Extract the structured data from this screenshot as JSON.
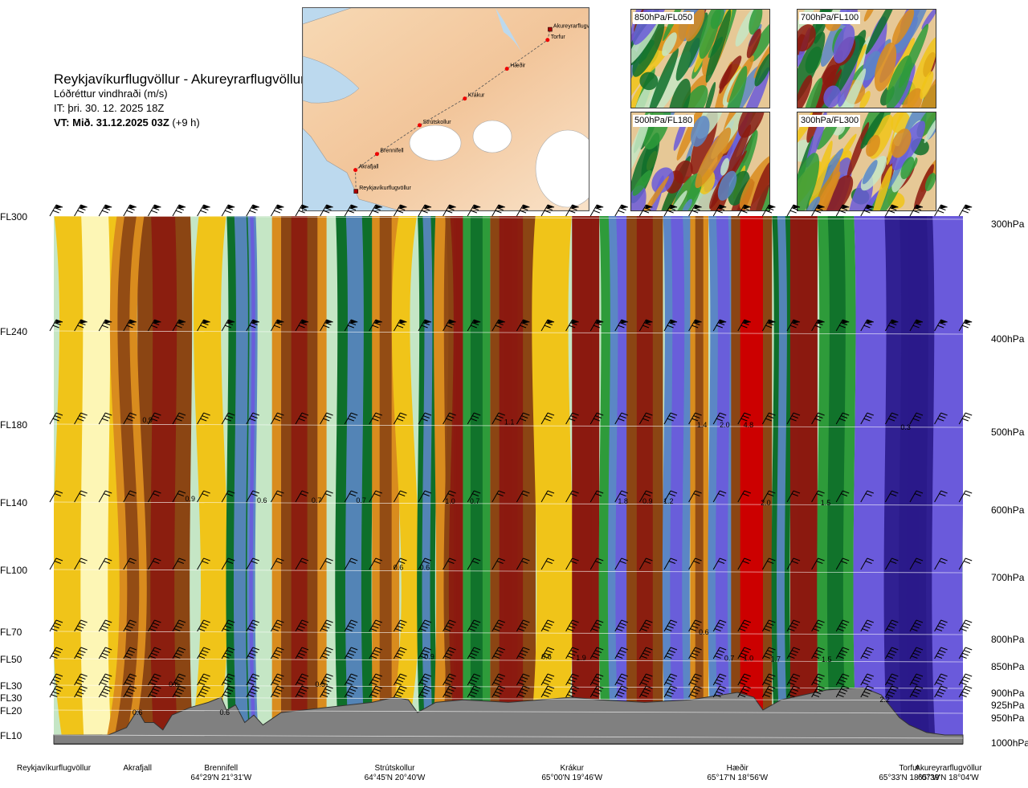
{
  "header": {
    "route": "Reykjavíkurflugvöllur - Akureyrarflugvöllur",
    "parameter": "Lóðréttur vindhraði (m/s)",
    "issue_time": "IT: þri. 30. 12. 2025 18Z",
    "valid_time_bold": "VT: Mið. 31.12.2025 03Z",
    "valid_offset": "(+9 h)"
  },
  "route_map": {
    "points": [
      {
        "name": "Reykjavíkurflugvöllur",
        "lon": -21.94,
        "lat": 64.13
      },
      {
        "name": "Akrafjall",
        "lon": -21.95,
        "lat": 64.33
      },
      {
        "name": "Brennifell",
        "lon": -21.52,
        "lat": 64.48
      },
      {
        "name": "Strútskollur",
        "lon": -20.67,
        "lat": 64.75
      },
      {
        "name": "Krákur",
        "lon": -19.77,
        "lat": 65.0
      },
      {
        "name": "Hæðir",
        "lon": -18.93,
        "lat": 65.28
      },
      {
        "name": "Torfur",
        "lon": -18.12,
        "lat": 65.55
      },
      {
        "name": "Akureyrarflugvöllur",
        "lon": -18.07,
        "lat": 65.65
      }
    ]
  },
  "insets": [
    {
      "label": "850hPa/FL050"
    },
    {
      "label": "700hPa/FL100"
    },
    {
      "label": "500hPa/FL180"
    },
    {
      "label": "300hPa/FL300"
    }
  ],
  "chart_data": {
    "type": "heatmap",
    "title": "Lóðréttur vindhraði (m/s)",
    "flight_levels": [
      {
        "label": "FL300",
        "hpa": 300
      },
      {
        "label": "FL240",
        "hpa": 400
      },
      {
        "label": "FL180",
        "hpa": 500
      },
      {
        "label": "FL140",
        "hpa": 600
      },
      {
        "label": "FL100",
        "hpa": 700
      },
      {
        "label": "FL70",
        "hpa": 800
      },
      {
        "label": "FL50",
        "hpa": 850
      },
      {
        "label": "FL30",
        "hpa": 900
      },
      {
        "label": "FL30",
        "hpa": 925
      },
      {
        "label": "FL20",
        "hpa": 950
      },
      {
        "label": "FL10",
        "hpa": 1000
      }
    ],
    "pressure_labels": [
      "300hPa",
      "400hPa",
      "500hPa",
      "600hPa",
      "700hPa",
      "800hPa",
      "850hPa",
      "900hPa",
      "925hPa",
      "950hPa",
      "1000hPa"
    ],
    "pressure_levels": [
      300,
      400,
      500,
      600,
      700,
      800,
      850,
      900,
      925,
      950,
      1000
    ],
    "distance_range": [
      0,
      100
    ],
    "waypoints": [
      {
        "name": "Reykjavíkurflugvöllur",
        "coord": "",
        "dist": 0
      },
      {
        "name": "Akrafjall",
        "coord": "",
        "dist": 9.2
      },
      {
        "name": "Brennifell",
        "coord": "64°29'N 21°31'W",
        "dist": 18.4
      },
      {
        "name": "Strútskollur",
        "coord": "64°45'N 20°40'W",
        "dist": 37.5
      },
      {
        "name": "Krákur",
        "coord": "65°00'N 19°46'W",
        "dist": 57
      },
      {
        "name": "Hæðir",
        "coord": "65°17'N 18°56'W",
        "dist": 75.2
      },
      {
        "name": "Torfur",
        "coord": "65°33'N 18°07'W",
        "dist": 94.1
      },
      {
        "name": "Akureyrarflugvöllur",
        "coord": "65°39'N 18°04'W",
        "dist": 98.4
      }
    ],
    "value_labels": [
      {
        "text": "0.9",
        "dist": 10.3,
        "hpa": 495
      },
      {
        "text": "1.1",
        "dist": 50.1,
        "hpa": 497
      },
      {
        "text": "1.4",
        "dist": 71.3,
        "hpa": 500
      },
      {
        "text": "2.0",
        "dist": 73.8,
        "hpa": 500
      },
      {
        "text": "4.8",
        "dist": 76.4,
        "hpa": 500
      },
      {
        "text": "0.3",
        "dist": 93.7,
        "hpa": 503
      },
      {
        "text": "0.9",
        "dist": 15.0,
        "hpa": 595
      },
      {
        "text": "0.6",
        "dist": 22.9,
        "hpa": 597
      },
      {
        "text": "0.7",
        "dist": 28.9,
        "hpa": 597
      },
      {
        "text": "0.7",
        "dist": 33.8,
        "hpa": 597
      },
      {
        "text": "1.0",
        "dist": 43.6,
        "hpa": 598
      },
      {
        "text": "0.7",
        "dist": 46.3,
        "hpa": 598
      },
      {
        "text": "1.8",
        "dist": 62.6,
        "hpa": 598
      },
      {
        "text": "0.9",
        "dist": 65.3,
        "hpa": 598
      },
      {
        "text": "1.2",
        "dist": 67.6,
        "hpa": 598
      },
      {
        "text": "2.0",
        "dist": 78.3,
        "hpa": 600
      },
      {
        "text": "1.5",
        "dist": 84.9,
        "hpa": 600
      },
      {
        "text": "0.6",
        "dist": 37.9,
        "hpa": 696
      },
      {
        "text": "0.6",
        "dist": 40.8,
        "hpa": 696
      },
      {
        "text": "0.6",
        "dist": 71.5,
        "hpa": 800
      },
      {
        "text": "0.9",
        "dist": 41.3,
        "hpa": 845
      },
      {
        "text": "0.6",
        "dist": 54.2,
        "hpa": 845
      },
      {
        "text": "1.9",
        "dist": 58.0,
        "hpa": 847
      },
      {
        "text": "0.7",
        "dist": 74.3,
        "hpa": 848
      },
      {
        "text": "1.0",
        "dist": 76.4,
        "hpa": 848
      },
      {
        "text": "1.7",
        "dist": 79.4,
        "hpa": 849
      },
      {
        "text": "1.5",
        "dist": 85.0,
        "hpa": 850
      },
      {
        "text": "0.6",
        "dist": 13.2,
        "hpa": 897
      },
      {
        "text": "0.5",
        "dist": 29.3,
        "hpa": 897
      },
      {
        "text": "2.2",
        "dist": 91.4,
        "hpa": 928
      },
      {
        "text": "0.6",
        "dist": 9.2,
        "hpa": 953
      },
      {
        "text": "0.6",
        "dist": 18.8,
        "hpa": 953
      }
    ],
    "wind_barb_rows": [
      300,
      400,
      500,
      600,
      700,
      800,
      850,
      900,
      925
    ]
  },
  "colors": {
    "strong_down": "#8b1a10",
    "down": "#8b4513",
    "weak_down": "#d98c1e",
    "faint_down": "#f0c419",
    "neutral": "#fdf6b5",
    "faint_up": "#c5e6c5",
    "weak_up": "#2e9b3a",
    "up": "#0e6f2a",
    "strong_up": "#5b86c5",
    "very_strong_up": "#6a5adb",
    "extreme_up": "#2a1a8a",
    "max_down": "#cc0000",
    "terrain": "#808080"
  }
}
